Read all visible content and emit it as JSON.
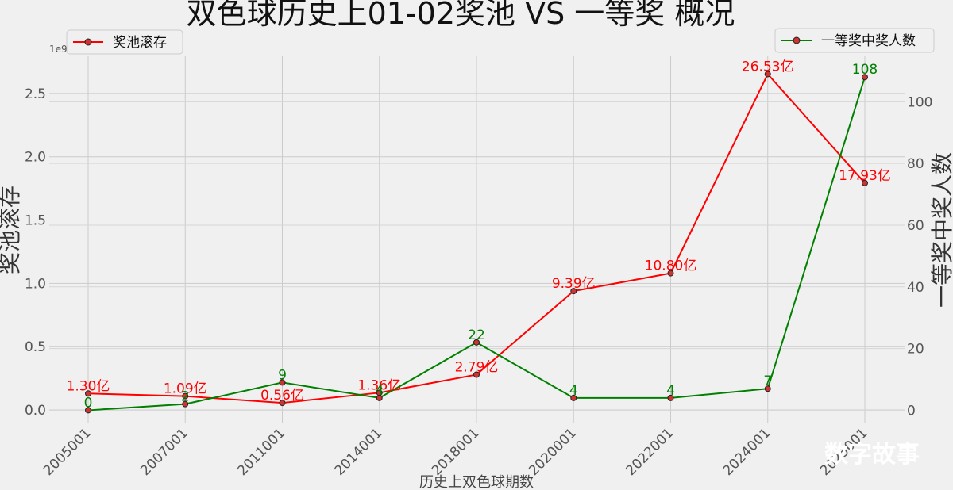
{
  "chart_data": {
    "type": "line",
    "title": "双色球历史上01-02奖池 VS 一等奖 概况",
    "xlabel": "历史上双色球期数",
    "categories": [
      "2005001",
      "2007001",
      "2011001",
      "2014001",
      "2018001",
      "2020001",
      "2022001",
      "2024001",
      "2025001"
    ],
    "y_left": {
      "label": "奖池滚存",
      "offset_text": "1e9",
      "ylim": [
        -0.1,
        2.8
      ],
      "ticks": [
        "0.0",
        "0.5",
        "1.0",
        "1.5",
        "2.0",
        "2.5"
      ]
    },
    "y_right": {
      "label": "一等奖中奖人数",
      "ylim": [
        -4,
        115
      ],
      "ticks": [
        "0",
        "20",
        "40",
        "60",
        "80",
        "100"
      ]
    },
    "series": [
      {
        "name": "奖池滚存",
        "axis": "left",
        "color": "#ff0000",
        "values": [
          0.13,
          0.109,
          0.056,
          0.136,
          0.279,
          0.939,
          1.08,
          2.653,
          1.793
        ],
        "labels": [
          "1.30亿",
          "1.09亿",
          "0.56亿",
          "1.36亿",
          "2.79亿",
          "9.39亿",
          "10.80亿",
          "26.53亿",
          "17.93亿"
        ]
      },
      {
        "name": "一等奖中奖人数",
        "axis": "right",
        "color": "#008000",
        "values": [
          0,
          2,
          9,
          4,
          22,
          4,
          4,
          7,
          108
        ],
        "labels": [
          "0",
          "2",
          "9",
          "4",
          "22",
          "4",
          "4",
          "7",
          "108"
        ]
      }
    ],
    "legend": {
      "left": "top-left",
      "right": "top-right"
    },
    "grid": true
  },
  "watermark": "数字故事"
}
